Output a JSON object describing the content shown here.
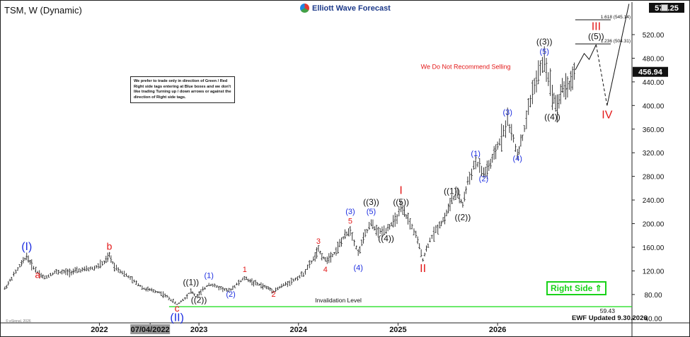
{
  "header": {
    "title": "TSM, W (Dynamic)",
    "logo_text": "Elliott Wave Forecast",
    "logo_icon": "ewf-logo-icon"
  },
  "notice_text": "We prefer to trade only in direction of Green / Red Right side tags entering at Blue boxes and we don't like trading Turning up / down arrows or against the direction of Right side tags.",
  "right_side_label": "Right Side ⇑",
  "updated_label": "EWF Updated 9.30.2026",
  "copyright": "© eSignal, 2026",
  "colors": {
    "red": "#e31919",
    "blue": "#1d2ee0",
    "black": "#111111",
    "green": "#19d219",
    "price_bar": "#222222"
  },
  "chart_data": {
    "type": "ohlc",
    "y_ticks": [
      40,
      80,
      120,
      160,
      200,
      240,
      280,
      320,
      360,
      400,
      440,
      480,
      520
    ],
    "ylim": [
      32,
      575
    ],
    "x_ticks": [
      {
        "label": "2022",
        "x": 2022.0,
        "highlight": false
      },
      {
        "label": "07/04/2022",
        "x": 2022.51,
        "highlight": true
      },
      {
        "label": "2023",
        "x": 2023.0,
        "highlight": false
      },
      {
        "label": "2024",
        "x": 2024.0,
        "highlight": false
      },
      {
        "label": "2025",
        "x": 2025.0,
        "highlight": false
      },
      {
        "label": "2026",
        "x": 2026.0,
        "highlight": false
      }
    ],
    "xlim": [
      2021.03,
      2027.35
    ],
    "price_path": [
      [
        2021.05,
        90
      ],
      [
        2021.12,
        108
      ],
      [
        2021.2,
        128
      ],
      [
        2021.27,
        145
      ],
      [
        2021.32,
        130
      ],
      [
        2021.38,
        118
      ],
      [
        2021.45,
        108
      ],
      [
        2021.55,
        118
      ],
      [
        2021.7,
        118
      ],
      [
        2021.85,
        122
      ],
      [
        2021.95,
        125
      ],
      [
        2022.05,
        134
      ],
      [
        2022.1,
        146
      ],
      [
        2022.15,
        128
      ],
      [
        2022.25,
        115
      ],
      [
        2022.35,
        102
      ],
      [
        2022.45,
        90
      ],
      [
        2022.6,
        84
      ],
      [
        2022.7,
        74
      ],
      [
        2022.78,
        63
      ],
      [
        2022.86,
        74
      ],
      [
        2022.92,
        86
      ],
      [
        2022.97,
        76
      ],
      [
        2023.02,
        84
      ],
      [
        2023.1,
        98
      ],
      [
        2023.2,
        92
      ],
      [
        2023.3,
        86
      ],
      [
        2023.4,
        100
      ],
      [
        2023.46,
        108
      ],
      [
        2023.55,
        100
      ],
      [
        2023.68,
        92
      ],
      [
        2023.75,
        86
      ],
      [
        2023.85,
        96
      ],
      [
        2023.95,
        104
      ],
      [
        2024.05,
        115
      ],
      [
        2024.15,
        140
      ],
      [
        2024.2,
        155
      ],
      [
        2024.27,
        138
      ],
      [
        2024.36,
        150
      ],
      [
        2024.45,
        175
      ],
      [
        2024.52,
        190
      ],
      [
        2024.6,
        150
      ],
      [
        2024.67,
        182
      ],
      [
        2024.73,
        200
      ],
      [
        2024.8,
        185
      ],
      [
        2024.88,
        190
      ],
      [
        2024.97,
        205
      ],
      [
        2025.03,
        225
      ],
      [
        2025.1,
        208
      ],
      [
        2025.18,
        180
      ],
      [
        2025.25,
        140
      ],
      [
        2025.32,
        172
      ],
      [
        2025.4,
        194
      ],
      [
        2025.47,
        210
      ],
      [
        2025.54,
        240
      ],
      [
        2025.6,
        250
      ],
      [
        2025.65,
        232
      ],
      [
        2025.7,
        270
      ],
      [
        2025.78,
        305
      ],
      [
        2025.86,
        284
      ],
      [
        2025.93,
        300
      ],
      [
        2026.0,
        330
      ],
      [
        2026.1,
        375
      ],
      [
        2026.2,
        318
      ],
      [
        2026.25,
        345
      ],
      [
        2026.35,
        425
      ],
      [
        2026.47,
        478
      ],
      [
        2026.55,
        420
      ],
      [
        2026.6,
        398
      ],
      [
        2026.65,
        430
      ],
      [
        2026.72,
        435
      ],
      [
        2026.77,
        456
      ]
    ],
    "projection": [
      [
        2026.78,
        460
      ],
      [
        2026.87,
        488
      ],
      [
        2026.92,
        478
      ],
      [
        2026.99,
        503
      ],
      [
        2027.1,
        400
      ],
      [
        2027.32,
        572
      ]
    ],
    "last_price": 456.94,
    "last_price_label": "456.94",
    "top_price_label": "570.25",
    "invalidation": {
      "value": 59.43,
      "value_label": "59.43",
      "label": "Invalidation Level"
    },
    "fib_levels": [
      {
        "label": "1.618 (545.14)",
        "value": 545.14
      },
      {
        "label": "1.236 (504.31)",
        "value": 504.31
      }
    ],
    "annotations": [
      {
        "text": "(I)",
        "x": 2021.27,
        "y": 155,
        "color": "blue",
        "size": 16
      },
      {
        "text": "a",
        "x": 2021.38,
        "y": 108,
        "color": "red",
        "size": 14
      },
      {
        "text": "b",
        "x": 2022.1,
        "y": 156,
        "color": "red",
        "size": 14
      },
      {
        "text": "c",
        "x": 2022.78,
        "y": 51,
        "color": "red",
        "size": 14
      },
      {
        "text": "(II)",
        "x": 2022.78,
        "y": 35,
        "color": "blue",
        "size": 16
      },
      {
        "text": "((1))",
        "x": 2022.92,
        "y": 96,
        "color": "black",
        "size": 12
      },
      {
        "text": "((2))",
        "x": 2023.0,
        "y": 66,
        "color": "black",
        "size": 12
      },
      {
        "text": "(1)",
        "x": 2023.1,
        "y": 108,
        "color": "blue",
        "size": 11
      },
      {
        "text": "(2)",
        "x": 2023.32,
        "y": 76,
        "color": "blue",
        "size": 11
      },
      {
        "text": "1",
        "x": 2023.46,
        "y": 118,
        "color": "red",
        "size": 11
      },
      {
        "text": "2",
        "x": 2023.75,
        "y": 76,
        "color": "red",
        "size": 11
      },
      {
        "text": "3",
        "x": 2024.2,
        "y": 166,
        "color": "red",
        "size": 11
      },
      {
        "text": "4",
        "x": 2024.27,
        "y": 118,
        "color": "red",
        "size": 11
      },
      {
        "text": "5",
        "x": 2024.52,
        "y": 200,
        "color": "red",
        "size": 11
      },
      {
        "text": "(3)",
        "x": 2024.52,
        "y": 216,
        "color": "blue",
        "size": 11
      },
      {
        "text": "(4)",
        "x": 2024.6,
        "y": 121,
        "color": "blue",
        "size": 11
      },
      {
        "text": "(5)",
        "x": 2024.73,
        "y": 216,
        "color": "blue",
        "size": 11
      },
      {
        "text": "((3))",
        "x": 2024.73,
        "y": 232,
        "color": "black",
        "size": 12
      },
      {
        "text": "((4))",
        "x": 2024.88,
        "y": 170,
        "color": "black",
        "size": 12
      },
      {
        "text": "((5))",
        "x": 2025.03,
        "y": 232,
        "color": "black",
        "size": 12
      },
      {
        "text": "I",
        "x": 2025.03,
        "y": 250,
        "color": "red",
        "size": 16
      },
      {
        "text": "II",
        "x": 2025.25,
        "y": 118,
        "color": "red",
        "size": 16
      },
      {
        "text": "((1))",
        "x": 2025.54,
        "y": 250,
        "color": "black",
        "size": 12
      },
      {
        "text": "((2))",
        "x": 2025.65,
        "y": 206,
        "color": "black",
        "size": 12
      },
      {
        "text": "(1)",
        "x": 2025.78,
        "y": 314,
        "color": "blue",
        "size": 11
      },
      {
        "text": "(2)",
        "x": 2025.86,
        "y": 272,
        "color": "blue",
        "size": 11
      },
      {
        "text": "(3)",
        "x": 2026.1,
        "y": 384,
        "color": "blue",
        "size": 11
      },
      {
        "text": "(4)",
        "x": 2026.2,
        "y": 306,
        "color": "blue",
        "size": 11
      },
      {
        "text": "(5)",
        "x": 2026.47,
        "y": 487,
        "color": "blue",
        "size": 11
      },
      {
        "text": "((3))",
        "x": 2026.47,
        "y": 503,
        "color": "black",
        "size": 12
      },
      {
        "text": "((4))",
        "x": 2026.55,
        "y": 376,
        "color": "black",
        "size": 12
      },
      {
        "text": "((5))",
        "x": 2026.99,
        "y": 512,
        "color": "black",
        "size": 12
      },
      {
        "text": "III",
        "x": 2026.99,
        "y": 528,
        "color": "red",
        "size": 16
      },
      {
        "text": "IV",
        "x": 2027.1,
        "y": 378,
        "color": "red",
        "size": 16
      },
      {
        "text": "We Do Not Recommend Selling",
        "x": 2025.68,
        "y": 462,
        "color": "red",
        "size": 9
      }
    ]
  }
}
